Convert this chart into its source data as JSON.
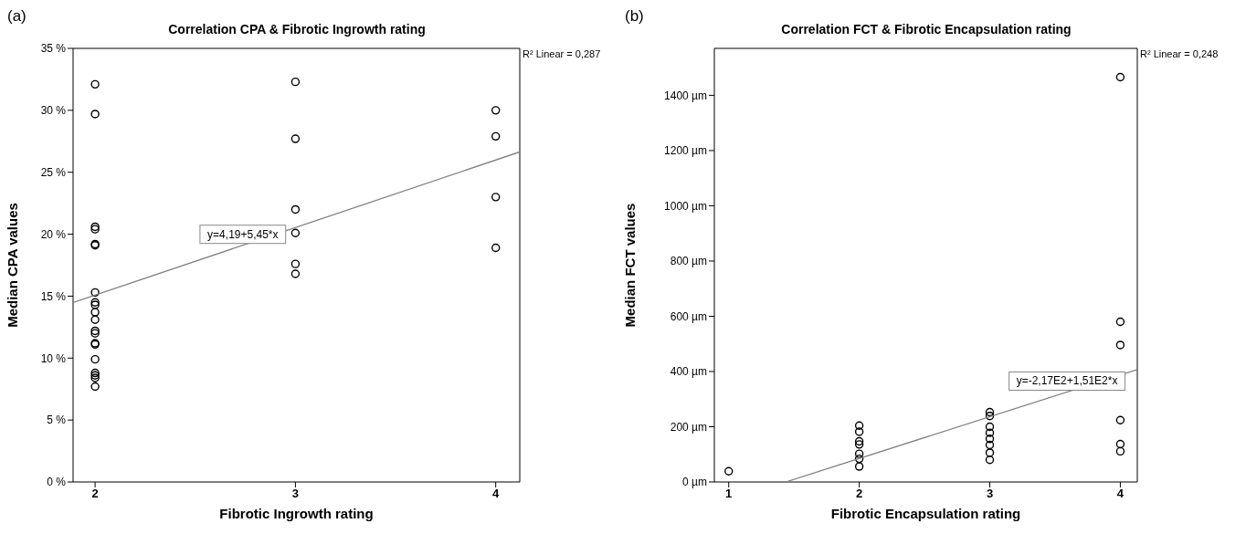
{
  "chart_data": [
    {
      "type": "scatter",
      "title": "Correlation CPA & Fibrotic Ingrowth rating",
      "xlabel": "Fibrotic Ingrowth rating",
      "ylabel": "Median CPA values",
      "xlim": [
        1.89,
        4.12
      ],
      "xticks": [
        2,
        3,
        4
      ],
      "ylim": [
        0,
        35
      ],
      "yticks": [
        {
          "value": 0,
          "label": "0 %"
        },
        {
          "value": 5,
          "label": "5 %"
        },
        {
          "value": 10,
          "label": "10 %"
        },
        {
          "value": 15,
          "label": "15 %"
        },
        {
          "value": 20,
          "label": "20 %"
        },
        {
          "value": 25,
          "label": "25 %"
        },
        {
          "value": 30,
          "label": "30 %"
        },
        {
          "value": 35,
          "label": "35 %"
        }
      ],
      "series": [
        {
          "marker": "circle",
          "color": "#000000",
          "x": [
            2,
            2,
            2,
            2,
            2,
            2,
            2,
            2,
            2,
            2,
            2,
            2,
            2,
            2,
            2,
            2,
            2,
            2,
            2,
            2,
            3,
            3,
            3,
            3,
            3,
            3,
            4,
            4,
            4,
            4
          ],
          "values": [
            32.1,
            29.7,
            20.6,
            20.4,
            19.2,
            19.1,
            15.3,
            14.5,
            14.3,
            13.7,
            13.1,
            12.2,
            12.0,
            11.2,
            11.1,
            9.9,
            8.8,
            8.6,
            8.4,
            7.7,
            32.3,
            27.7,
            22.0,
            20.1,
            17.6,
            16.8,
            30.0,
            27.9,
            23.0,
            18.9
          ]
        },
        {
          "type": "line",
          "color": "#808080",
          "x": [
            1.89,
            4.12
          ],
          "values": [
            14.49,
            26.64
          ]
        }
      ],
      "annotations": [
        "(a)",
        "R² Linear = 0,287",
        "y=4,19+5,45*x"
      ]
    },
    {
      "type": "scatter",
      "title": "Correlation FCT & Fibrotic Encapsulation rating",
      "xlabel": "Fibrotic Encapsulation rating",
      "ylabel": "Median FCT values",
      "xlim": [
        0.89,
        4.13
      ],
      "xticks": [
        1,
        2,
        3,
        4
      ],
      "ylim": [
        0,
        1570
      ],
      "yticks": [
        {
          "value": 0,
          "label": "0 µm"
        },
        {
          "value": 200,
          "label": "200 µm"
        },
        {
          "value": 400,
          "label": "400 µm"
        },
        {
          "value": 600,
          "label": "600 µm"
        },
        {
          "value": 800,
          "label": "800 µm"
        },
        {
          "value": 1000,
          "label": "1000 µm"
        },
        {
          "value": 1200,
          "label": "1200 µm"
        },
        {
          "value": 1400,
          "label": "1400 µm"
        }
      ],
      "series": [
        {
          "marker": "circle",
          "color": "#000000",
          "x": [
            1,
            2,
            2,
            2,
            2,
            2,
            2,
            2,
            3,
            3,
            3,
            3,
            3,
            3,
            3,
            3,
            4,
            4,
            4,
            4,
            4,
            4
          ],
          "values": [
            39,
            204,
            182,
            147,
            136,
            102,
            84,
            56,
            253,
            239,
            200,
            178,
            156,
            134,
            106,
            80,
            1466,
            580,
            496,
            224,
            137,
            111
          ]
        },
        {
          "type": "line",
          "color": "#808080",
          "x": [
            1.437,
            4.13
          ],
          "values": [
            0,
            407
          ]
        }
      ],
      "annotations": [
        "(b)",
        "R² Linear = 0,248",
        "y=-2,17E2+1,51E2*x"
      ]
    }
  ]
}
